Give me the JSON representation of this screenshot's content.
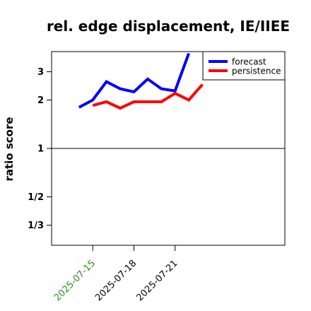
{
  "chart_data": {
    "type": "line",
    "title": "rel. edge displacement, IE/IIEE",
    "ylabel": "ratio score",
    "xlabel": "",
    "y_scale": "log",
    "y_ticks": [
      {
        "value": 0.3333,
        "label": "1/3"
      },
      {
        "value": 0.5,
        "label": "1/2"
      },
      {
        "value": 1,
        "label": "1"
      },
      {
        "value": 2,
        "label": "2"
      },
      {
        "value": 3,
        "label": "3"
      }
    ],
    "x_ticks": [
      {
        "date": "2025-07-15",
        "label": "2025-07-15",
        "color": "#2e8b22"
      },
      {
        "date": "2025-07-18",
        "label": "2025-07-18",
        "color": "#000000"
      },
      {
        "date": "2025-07-21",
        "label": "2025-07-21",
        "color": "#000000"
      }
    ],
    "xlim": [
      "2025-07-12",
      "2025-07-29"
    ],
    "ylim": [
      0.25,
      4.0
    ],
    "reference_line": 1,
    "legend_position": "top-right",
    "series": [
      {
        "name": "forecast",
        "color": "#0000ff",
        "x": [
          "2025-07-14",
          "2025-07-15",
          "2025-07-16",
          "2025-07-17",
          "2025-07-18",
          "2025-07-19",
          "2025-07-20",
          "2025-07-21",
          "2025-07-22"
        ],
        "values": [
          1.8,
          2.0,
          2.6,
          2.35,
          2.25,
          2.7,
          2.35,
          2.28,
          3.9
        ]
      },
      {
        "name": "persistence",
        "color": "#ff0000",
        "x": [
          "2025-07-15",
          "2025-07-16",
          "2025-07-17",
          "2025-07-18",
          "2025-07-19",
          "2025-07-20",
          "2025-07-21",
          "2025-07-22",
          "2025-07-23"
        ],
        "values": [
          1.85,
          1.95,
          1.78,
          1.95,
          1.95,
          1.95,
          2.2,
          2.0,
          2.5
        ]
      }
    ]
  }
}
